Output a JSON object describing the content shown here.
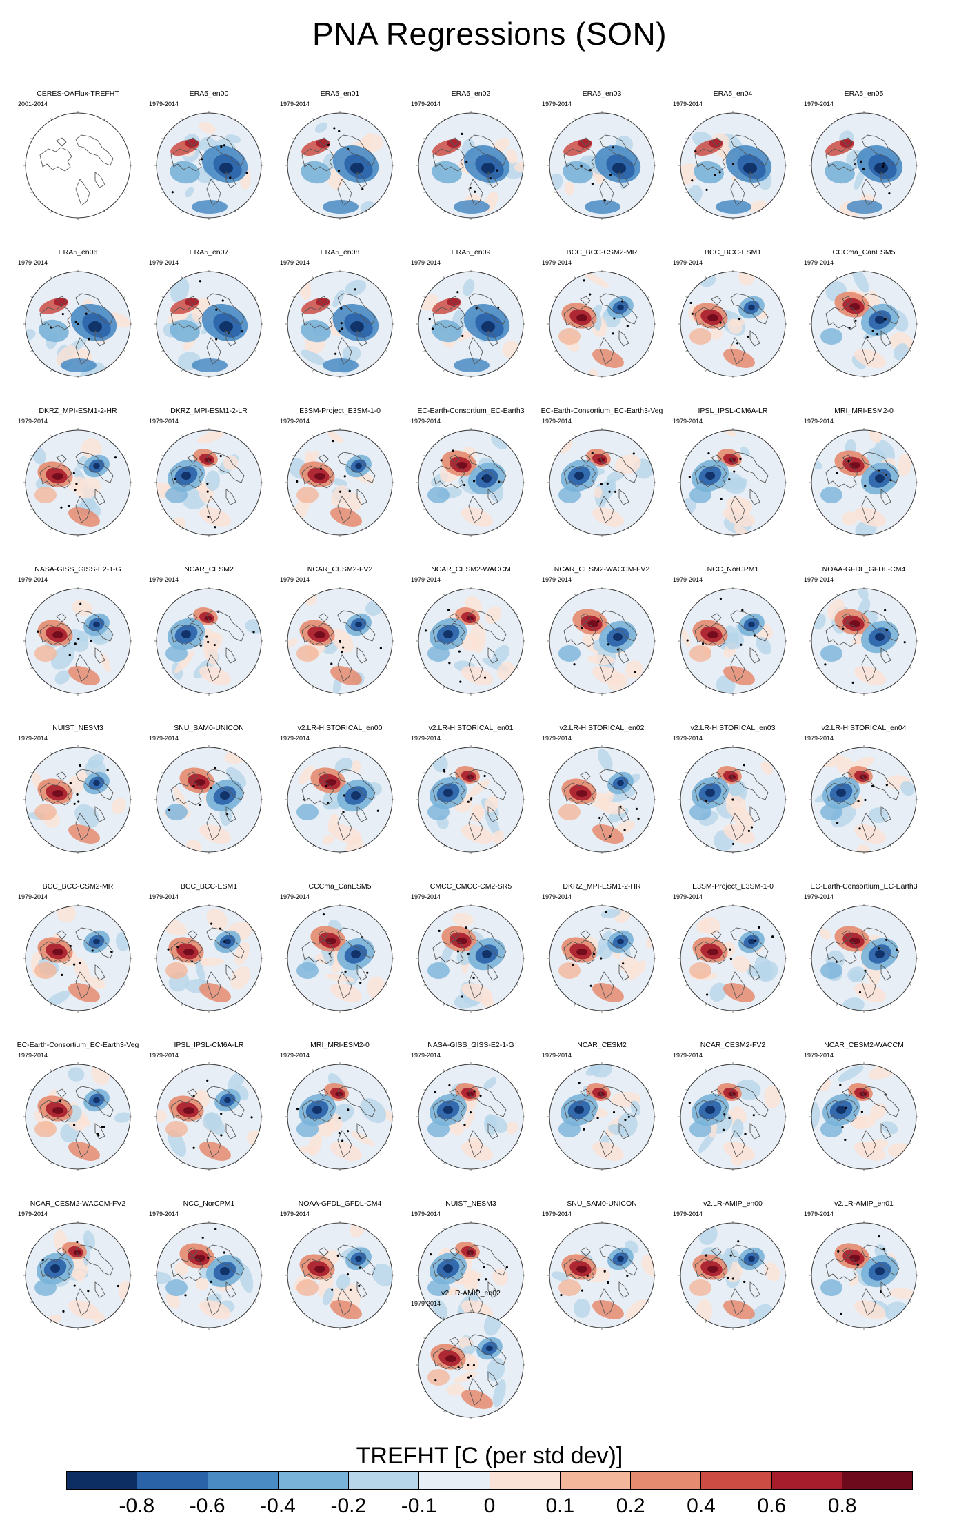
{
  "title": "PNA Regressions (SON)",
  "colorbar": {
    "title": "TREFHT [C (per std dev)]",
    "labels": [
      "-0.8",
      "-0.6",
      "-0.4",
      "-0.2",
      "-0.1",
      "0",
      "0.1",
      "0.2",
      "0.4",
      "0.6",
      "0.8"
    ],
    "colors": [
      "#0d2e62",
      "#2a63a8",
      "#4a8bc4",
      "#79b3d9",
      "#b7d6ea",
      "#e8eef5",
      "#fbe2d6",
      "#f3b79b",
      "#e58b70",
      "#cc4c44",
      "#a81d2c",
      "#6d0a1b"
    ]
  },
  "panels": [
    {
      "title": "CERES-OAFlux-TREFHT",
      "period": "2001-2014",
      "pattern": "empty"
    },
    {
      "title": "ERA5_en00",
      "period": "1979-2014",
      "pattern": "era5"
    },
    {
      "title": "ERA5_en01",
      "period": "1979-2014",
      "pattern": "era5"
    },
    {
      "title": "ERA5_en02",
      "period": "1979-2014",
      "pattern": "era5"
    },
    {
      "title": "ERA5_en03",
      "period": "1979-2014",
      "pattern": "era5"
    },
    {
      "title": "ERA5_en04",
      "period": "1979-2014",
      "pattern": "era5"
    },
    {
      "title": "ERA5_en05",
      "period": "1979-2014",
      "pattern": "era5"
    },
    {
      "title": "ERA5_en06",
      "period": "1979-2014",
      "pattern": "era5"
    },
    {
      "title": "ERA5_en07",
      "period": "1979-2014",
      "pattern": "era5"
    },
    {
      "title": "ERA5_en08",
      "period": "1979-2014",
      "pattern": "era5"
    },
    {
      "title": "ERA5_en09",
      "period": "1979-2014",
      "pattern": "era5"
    },
    {
      "title": "BCC_BCC-CSM2-MR",
      "period": "1979-2014",
      "pattern": "warm"
    },
    {
      "title": "BCC_BCC-ESM1",
      "period": "1979-2014",
      "pattern": "warm"
    },
    {
      "title": "CCCma_CanESM5",
      "period": "1979-2014",
      "pattern": "mixed"
    },
    {
      "title": "DKRZ_MPI-ESM1-2-HR",
      "period": "1979-2014",
      "pattern": "warm"
    },
    {
      "title": "DKRZ_MPI-ESM1-2-LR",
      "period": "1979-2014",
      "pattern": "cool"
    },
    {
      "title": "E3SM-Project_E3SM-1-0",
      "period": "1979-2014",
      "pattern": "warm"
    },
    {
      "title": "EC-Earth-Consortium_EC-Earth3",
      "period": "1979-2014",
      "pattern": "mixed"
    },
    {
      "title": "EC-Earth-Consortium_EC-Earth3-Veg",
      "period": "1979-2014",
      "pattern": "cool"
    },
    {
      "title": "IPSL_IPSL-CM6A-LR",
      "period": "1979-2014",
      "pattern": "cool"
    },
    {
      "title": "MRI_MRI-ESM2-0",
      "period": "1979-2014",
      "pattern": "mixed"
    },
    {
      "title": "NASA-GISS_GISS-E2-1-G",
      "period": "1979-2014",
      "pattern": "warm"
    },
    {
      "title": "NCAR_CESM2",
      "period": "1979-2014",
      "pattern": "cool"
    },
    {
      "title": "NCAR_CESM2-FV2",
      "period": "1979-2014",
      "pattern": "warm"
    },
    {
      "title": "NCAR_CESM2-WACCM",
      "period": "1979-2014",
      "pattern": "cool"
    },
    {
      "title": "NCAR_CESM2-WACCM-FV2",
      "period": "1979-2014",
      "pattern": "mixed"
    },
    {
      "title": "NCC_NorCPM1",
      "period": "1979-2014",
      "pattern": "warm"
    },
    {
      "title": "NOAA-GFDL_GFDL-CM4",
      "period": "1979-2014",
      "pattern": "mixed"
    },
    {
      "title": "NUIST_NESM3",
      "period": "1979-2014",
      "pattern": "warm"
    },
    {
      "title": "SNU_SAM0-UNICON",
      "period": "1979-2014",
      "pattern": "mixed"
    },
    {
      "title": "v2.LR-HISTORICAL_en00",
      "period": "1979-2014",
      "pattern": "mixed"
    },
    {
      "title": "v2.LR-HISTORICAL_en01",
      "period": "1979-2014",
      "pattern": "cool"
    },
    {
      "title": "v2.LR-HISTORICAL_en02",
      "period": "1979-2014",
      "pattern": "warm"
    },
    {
      "title": "v2.LR-HISTORICAL_en03",
      "period": "1979-2014",
      "pattern": "cool"
    },
    {
      "title": "v2.LR-HISTORICAL_en04",
      "period": "1979-2014",
      "pattern": "cool"
    },
    {
      "title": "BCC_BCC-CSM2-MR",
      "period": "1979-2014",
      "pattern": "warm"
    },
    {
      "title": "BCC_BCC-ESM1",
      "period": "1979-2014",
      "pattern": "warm"
    },
    {
      "title": "CCCma_CanESM5",
      "period": "1979-2014",
      "pattern": "mixed"
    },
    {
      "title": "CMCC_CMCC-CM2-SR5",
      "period": "1979-2014",
      "pattern": "mixed"
    },
    {
      "title": "DKRZ_MPI-ESM1-2-HR",
      "period": "1979-2014",
      "pattern": "warm"
    },
    {
      "title": "E3SM-Project_E3SM-1-0",
      "period": "1979-2014",
      "pattern": "warm"
    },
    {
      "title": "EC-Earth-Consortium_EC-Earth3",
      "period": "1979-2014",
      "pattern": "mixed"
    },
    {
      "title": "EC-Earth-Consortium_EC-Earth3-Veg",
      "period": "1979-2014",
      "pattern": "warm"
    },
    {
      "title": "IPSL_IPSL-CM6A-LR",
      "period": "1979-2014",
      "pattern": "warm"
    },
    {
      "title": "MRI_MRI-ESM2-0",
      "period": "1979-2014",
      "pattern": "cool"
    },
    {
      "title": "NASA-GISS_GISS-E2-1-G",
      "period": "1979-2014",
      "pattern": "cool"
    },
    {
      "title": "NCAR_CESM2",
      "period": "1979-2014",
      "pattern": "cool"
    },
    {
      "title": "NCAR_CESM2-FV2",
      "period": "1979-2014",
      "pattern": "cool"
    },
    {
      "title": "NCAR_CESM2-WACCM",
      "period": "1979-2014",
      "pattern": "cool"
    },
    {
      "title": "NCAR_CESM2-WACCM-FV2",
      "period": "1979-2014",
      "pattern": "cool"
    },
    {
      "title": "NCC_NorCPM1",
      "period": "1979-2014",
      "pattern": "mixed"
    },
    {
      "title": "NOAA-GFDL_GFDL-CM4",
      "period": "1979-2014",
      "pattern": "warm"
    },
    {
      "title": "NUIST_NESM3",
      "period": "1979-2014",
      "pattern": "cool"
    },
    {
      "title": "SNU_SAM0-UNICON",
      "period": "1979-2014",
      "pattern": "warm"
    },
    {
      "title": "v2.LR-AMIP_en00",
      "period": "1979-2014",
      "pattern": "warm"
    },
    {
      "title": "v2.LR-AMIP_en01",
      "period": "1979-2014",
      "pattern": "mixed"
    },
    {
      "title": "v2.LR-AMIP_en02",
      "period": "1979-2014",
      "pattern": "warm"
    }
  ]
}
